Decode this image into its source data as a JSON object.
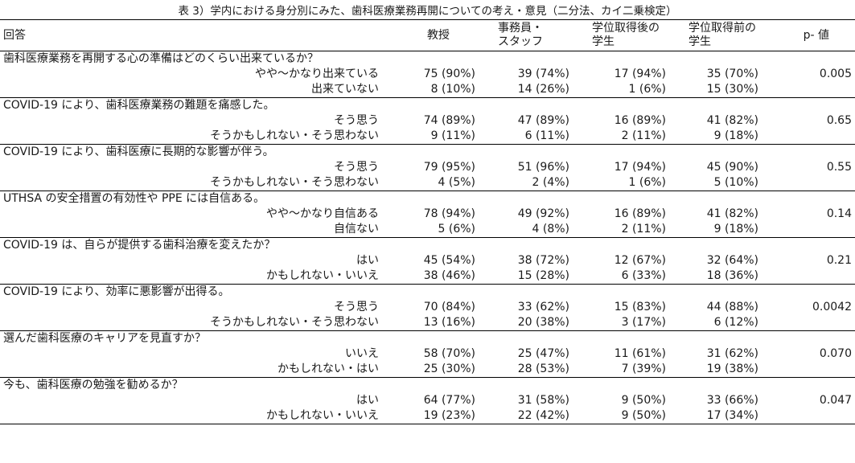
{
  "caption": "表 3）学内における身分別にみた、歯科医療業務再開についての考え・意見（二分法、カイ二乗検定）",
  "headers": {
    "answer": "回答",
    "professor": "教授",
    "staff_l1": "事務員・",
    "staff_l2": "スタッフ",
    "post_l1": "学位取得後の",
    "post_l2": "学生",
    "pre_l1": "学位取得前の",
    "pre_l2": "学生",
    "pvalue": "p- 値"
  },
  "questions": [
    {
      "text": "歯科医療業務を再開する心の準備はどのくらい出来ているか？",
      "pvalue": "0.005",
      "options": [
        {
          "label": "やや～かなり出来ている",
          "professor": "75 (90%)",
          "staff": "39 (74%)",
          "post": "17 (94%)",
          "pre": "35 (70%)"
        },
        {
          "label": "出来ていない",
          "professor": "8 (10%)",
          "staff": "14 (26%)",
          "post": "1 (6%)",
          "pre": "15 (30%)"
        }
      ]
    },
    {
      "text": "COVID-19 により、歯科医療業務の難題を痛感した。",
      "pvalue": "0.65",
      "options": [
        {
          "label": "そう思う",
          "professor": "74 (89%)",
          "staff": "47 (89%)",
          "post": "16 (89%)",
          "pre": "41 (82%)"
        },
        {
          "label": "そうかもしれない・そう思わない",
          "professor": "9 (11%)",
          "staff": "6 (11%)",
          "post": "2 (11%)",
          "pre": "9 (18%)"
        }
      ]
    },
    {
      "text": "COVID-19 により、歯科医療に長期的な影響が伴う。",
      "pvalue": "0.55",
      "options": [
        {
          "label": "そう思う",
          "professor": "79 (95%)",
          "staff": "51 (96%)",
          "post": "17 (94%)",
          "pre": "45 (90%)"
        },
        {
          "label": "そうかもしれない・そう思わない",
          "professor": "4 (5%)",
          "staff": "2 (4%)",
          "post": "1 (6%)",
          "pre": "5 (10%)"
        }
      ]
    },
    {
      "text": "UTHSA の安全措置の有効性や PPE には自信ある。",
      "pvalue": "0.14",
      "options": [
        {
          "label": "やや～かなり自信ある",
          "professor": "78 (94%)",
          "staff": "49 (92%)",
          "post": "16 (89%)",
          "pre": "41 (82%)"
        },
        {
          "label": "自信ない",
          "professor": "5 (6%)",
          "staff": "4 (8%)",
          "post": "2 (11%)",
          "pre": "9 (18%)"
        }
      ]
    },
    {
      "text": " COVID-19 は、自らが提供する歯科治療を変えたか？",
      "pvalue": "0.21",
      "options": [
        {
          "label": "はい",
          "professor": "45 (54%)",
          "staff": "38 (72%)",
          "post": "12 (67%)",
          "pre": "32 (64%)"
        },
        {
          "label": "かもしれない・いいえ",
          "professor": "38 (46%)",
          "staff": "15 (28%)",
          "post": "6 (33%)",
          "pre": "18 (36%)"
        }
      ]
    },
    {
      "text": "COVID-19 により、効率に悪影響が出得る。",
      "pvalue": "0.0042",
      "options": [
        {
          "label": "そう思う",
          "professor": "70 (84%)",
          "staff": "33 (62%)",
          "post": "15 (83%)",
          "pre": "44 (88%)"
        },
        {
          "label": "そうかもしれない・そう思わない",
          "professor": "13 (16%)",
          "staff": "20 (38%)",
          "post": "3 (17%)",
          "pre": "6 (12%)"
        }
      ]
    },
    {
      "text": "選んだ歯科医療のキャリアを見直すか？",
      "pvalue": "0.070",
      "options": [
        {
          "label": "いいえ",
          "professor": "58 (70%)",
          "staff": "25 (47%)",
          "post": "11 (61%)",
          "pre": "31 (62%)"
        },
        {
          "label": "かもしれない・はい",
          "professor": "25 (30%)",
          "staff": "28 (53%)",
          "post": "7 (39%)",
          "pre": "19 (38%)"
        }
      ]
    },
    {
      "text": "今も、歯科医療の勉強を勧めるか？",
      "pvalue": "0.047",
      "options": [
        {
          "label": "はい",
          "professor": "64 (77%)",
          "staff": "31 (58%)",
          "post": "9 (50%)",
          "pre": "33 (66%)"
        },
        {
          "label": "かもしれない・いいえ",
          "professor": "19 (23%)",
          "staff": "22 (42%)",
          "post": "9 (50%)",
          "pre": "17 (34%)"
        }
      ]
    }
  ]
}
